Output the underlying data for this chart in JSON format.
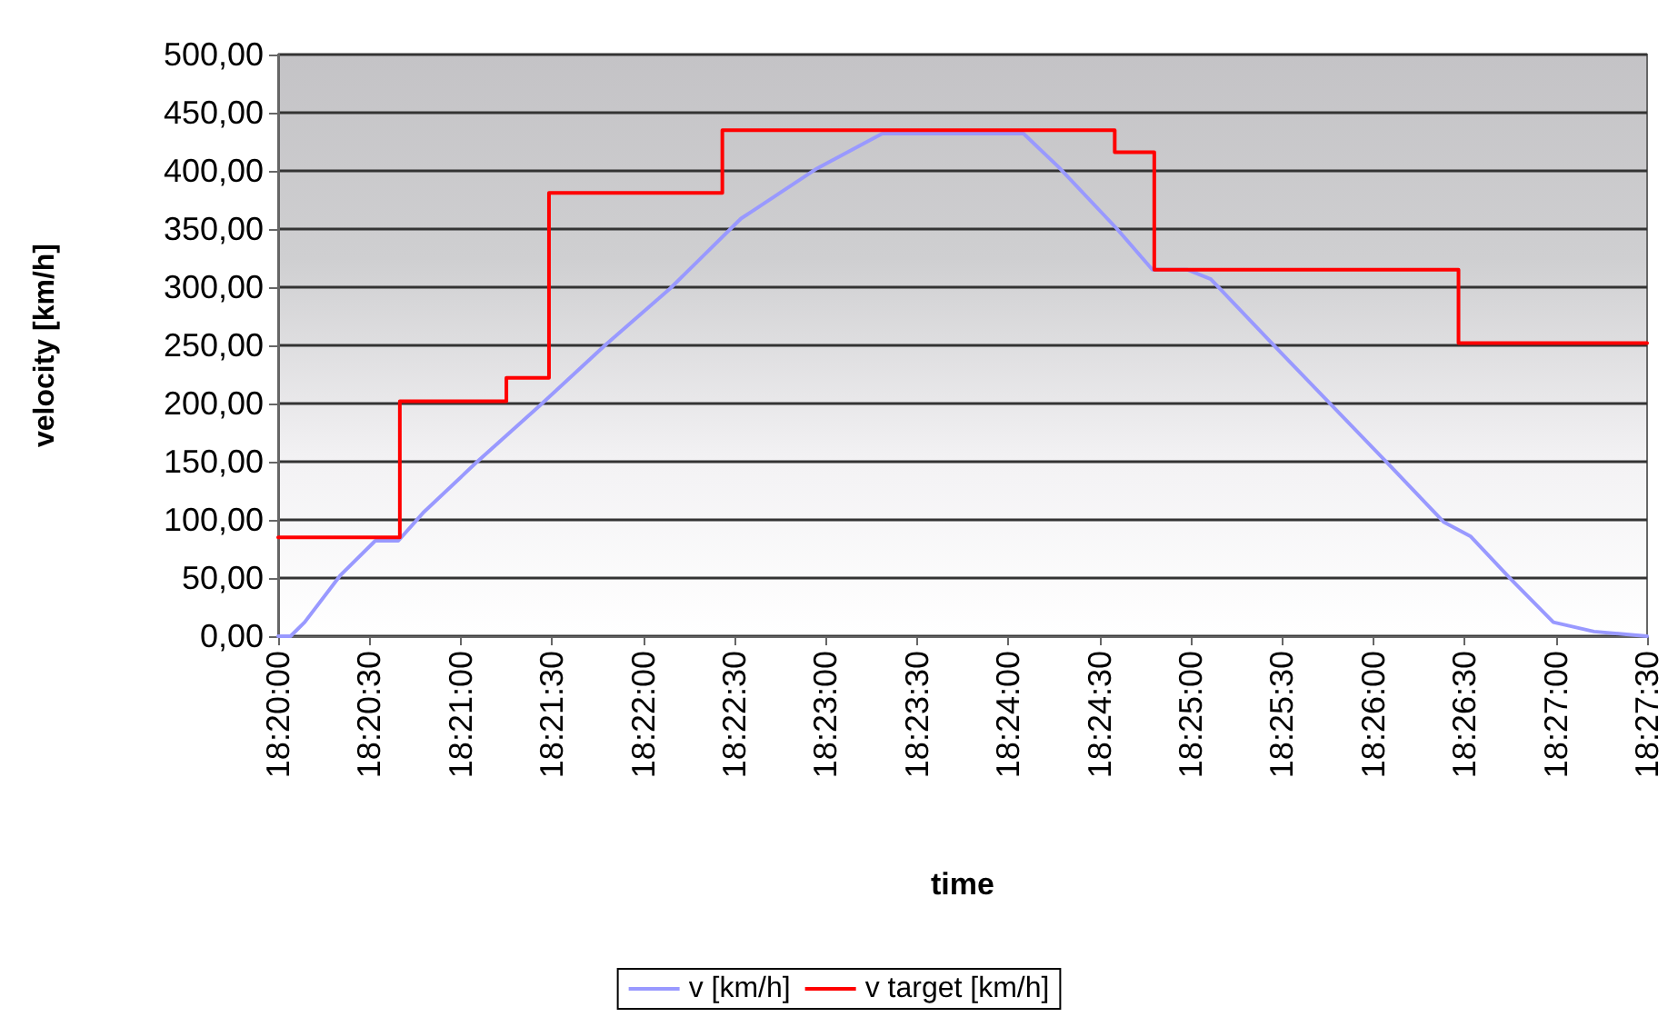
{
  "chart_data": {
    "type": "line",
    "xlabel": "time",
    "ylabel": "velocity [km/h]",
    "xlim": [
      18.33333,
      18.45833
    ],
    "xticks": [
      {
        "value": 18.33333,
        "label": "18:20:00"
      },
      {
        "value": 18.34167,
        "label": "18:20:30"
      },
      {
        "value": 18.35,
        "label": "18:21:00"
      },
      {
        "value": 18.35833,
        "label": "18:21:30"
      },
      {
        "value": 18.36667,
        "label": "18:22:00"
      },
      {
        "value": 18.375,
        "label": "18:22:30"
      },
      {
        "value": 18.38333,
        "label": "18:23:00"
      },
      {
        "value": 18.39167,
        "label": "18:23:30"
      },
      {
        "value": 18.4,
        "label": "18:24:00"
      },
      {
        "value": 18.40833,
        "label": "18:24:30"
      },
      {
        "value": 18.41667,
        "label": "18:25:00"
      },
      {
        "value": 18.425,
        "label": "18:25:30"
      },
      {
        "value": 18.43333,
        "label": "18:26:00"
      },
      {
        "value": 18.44167,
        "label": "18:26:30"
      },
      {
        "value": 18.45,
        "label": "18:27:00"
      },
      {
        "value": 18.45833,
        "label": "18:27:30"
      }
    ],
    "ylim": [
      0,
      500
    ],
    "yticks": [
      {
        "value": 0,
        "label": "0,00"
      },
      {
        "value": 50,
        "label": "50,00"
      },
      {
        "value": 100,
        "label": "100,00"
      },
      {
        "value": 150,
        "label": "150,00"
      },
      {
        "value": 200,
        "label": "200,00"
      },
      {
        "value": 250,
        "label": "250,00"
      },
      {
        "value": 300,
        "label": "300,00"
      },
      {
        "value": 350,
        "label": "350,00"
      },
      {
        "value": 400,
        "label": "400,00"
      },
      {
        "value": 450,
        "label": "450,00"
      },
      {
        "value": 500,
        "label": "500,00"
      }
    ],
    "grid": "y",
    "legend": "bottom",
    "marker": "none",
    "line_style": "solid",
    "series": [
      {
        "name": "v [km/h]",
        "color": "#9999ff",
        "x": [
          18.33333,
          18.33446,
          18.33575,
          18.33898,
          18.3422,
          18.3443,
          18.34656,
          18.35139,
          18.3572,
          18.36317,
          18.36914,
          18.37559,
          18.37656,
          18.38252,
          18.38849,
          18.40139,
          18.40462,
          18.40994,
          18.41316,
          18.41639,
          18.41849,
          18.42446,
          18.43461,
          18.43978,
          18.44219,
          18.4459,
          18.44977,
          18.45348,
          18.45833
        ],
        "values": [
          0,
          0,
          12,
          52,
          82,
          82,
          106,
          149,
          198,
          250,
          299,
          359,
          365,
          402,
          432,
          432,
          403,
          350,
          315,
          315,
          307,
          248,
          149,
          98,
          86,
          49,
          12,
          4,
          0
        ]
      },
      {
        "name": "v target [km/h]",
        "color": "#ff0000",
        "type": "step",
        "x": [
          18.33333,
          18.34444,
          18.35417,
          18.35806,
          18.37389,
          18.40972,
          18.41333,
          18.44111,
          18.45833
        ],
        "values": [
          85,
          202,
          222,
          381,
          435,
          416,
          315,
          252,
          252
        ]
      }
    ]
  }
}
